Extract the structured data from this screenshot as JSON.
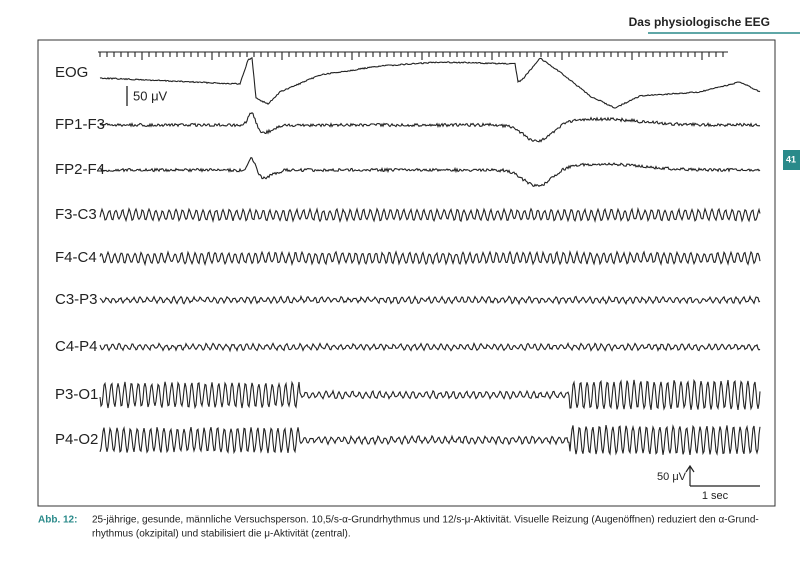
{
  "header": {
    "title": "Das physiologische EEG",
    "page_number": "41"
  },
  "figure": {
    "channels": [
      "EOG",
      "FP1-F3",
      "FP2-F4",
      "F3-C3",
      "F4-C4",
      "C3-P3",
      "C4-P4",
      "P3-O1",
      "P4-O2"
    ],
    "calibration_label": "50 μV",
    "scale": {
      "amplitude": "50 μV",
      "time": "1 sec"
    }
  },
  "caption": {
    "label": "Abb. 12:",
    "lines": [
      "25-jährige, gesunde, männliche Versuchsperson. 10,5/s-α-Grundrhythmus und 12/s-μ-Aktivität. Visuelle Reizung (Augenöffnen) reduziert den α-Grund-",
      "rhythmus (okzipital) und stabilisiert die μ-Aktivität (zentral)."
    ]
  }
}
